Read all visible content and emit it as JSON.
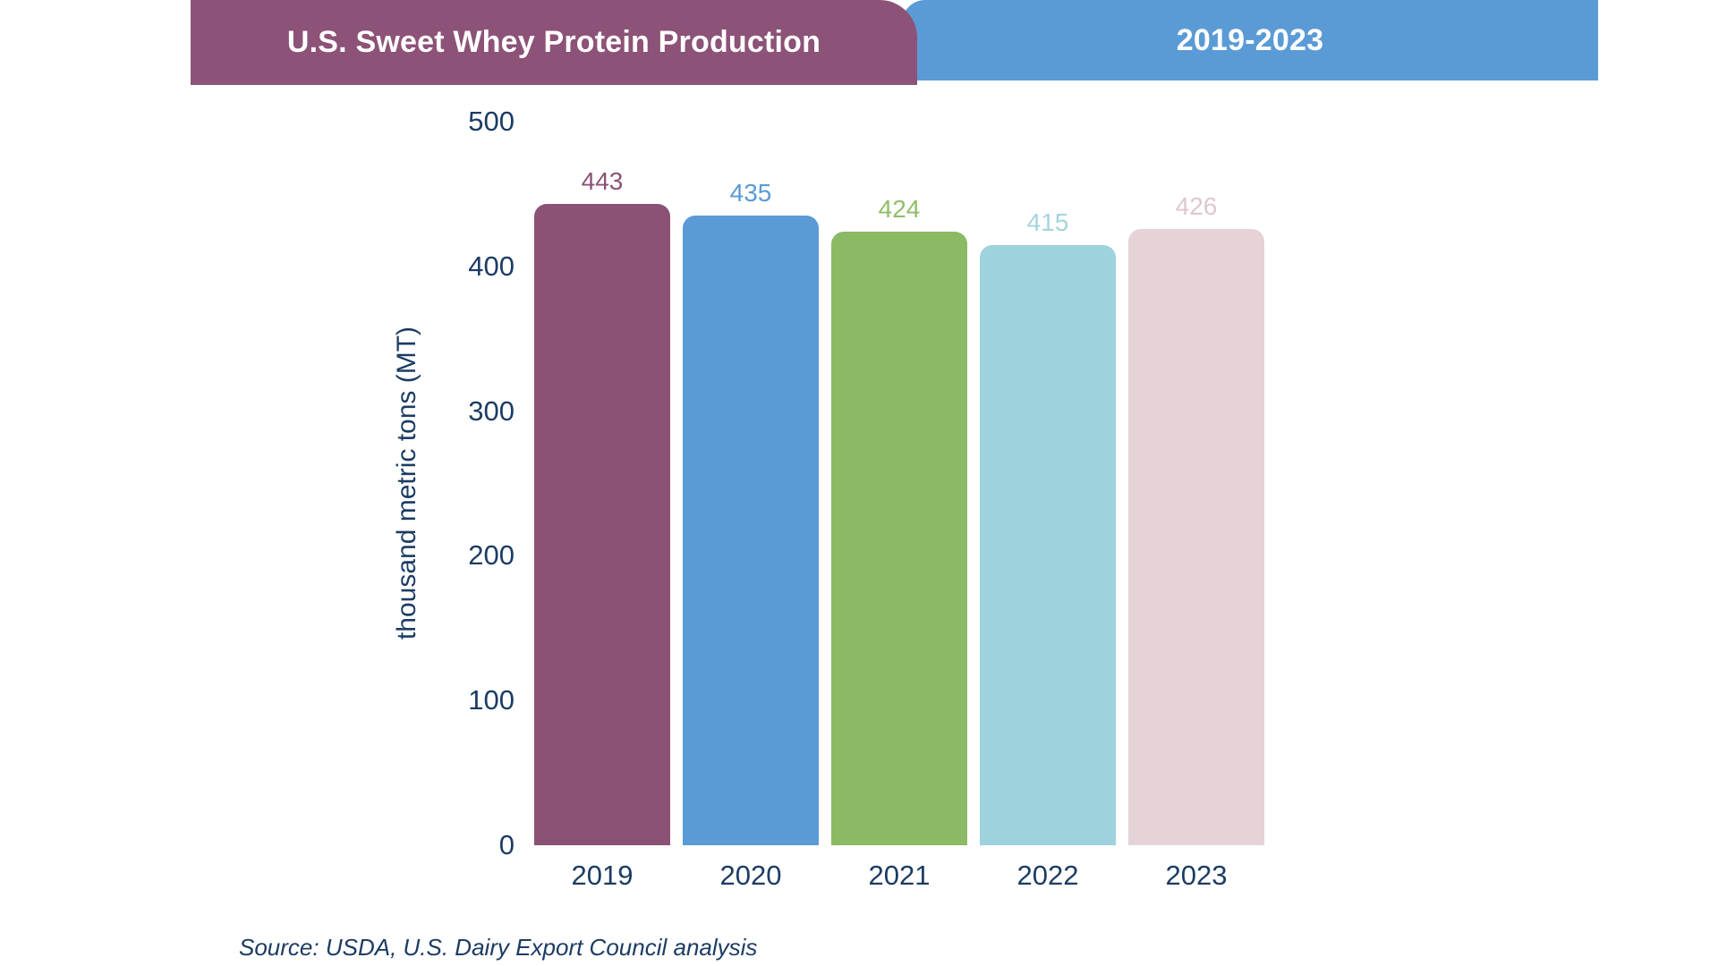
{
  "header": {
    "title": "U.S. Sweet Whey Protein Production",
    "period": "2019-2023",
    "title_bg": "#8c5277",
    "period_bg": "#5a9bd5",
    "text_color": "#ffffff"
  },
  "chart_data": {
    "type": "bar",
    "title": "U.S. Sweet Whey Protein Production 2019-2023",
    "categories": [
      "2019",
      "2020",
      "2021",
      "2022",
      "2023"
    ],
    "values": [
      443,
      435,
      424,
      415,
      426
    ],
    "bar_colors": [
      "#8b5275",
      "#5a9bd5",
      "#8aba63",
      "#9dd3dd",
      "#e5d3d7"
    ],
    "value_label_colors": [
      "#8b5275",
      "#5a9bd5",
      "#8fbe68",
      "#a6d4dc",
      "#ddc8cd"
    ],
    "xlabel": "",
    "ylabel": "thousand metric tons (MT)",
    "yticks": [
      0,
      100,
      200,
      300,
      400,
      500
    ],
    "ylim": [
      0,
      500
    ],
    "grid": false,
    "legend": "none",
    "axis_text_color": "#1c3c63"
  },
  "footer": {
    "source": "Source: USDA, U.S. Dairy Export Council analysis"
  }
}
